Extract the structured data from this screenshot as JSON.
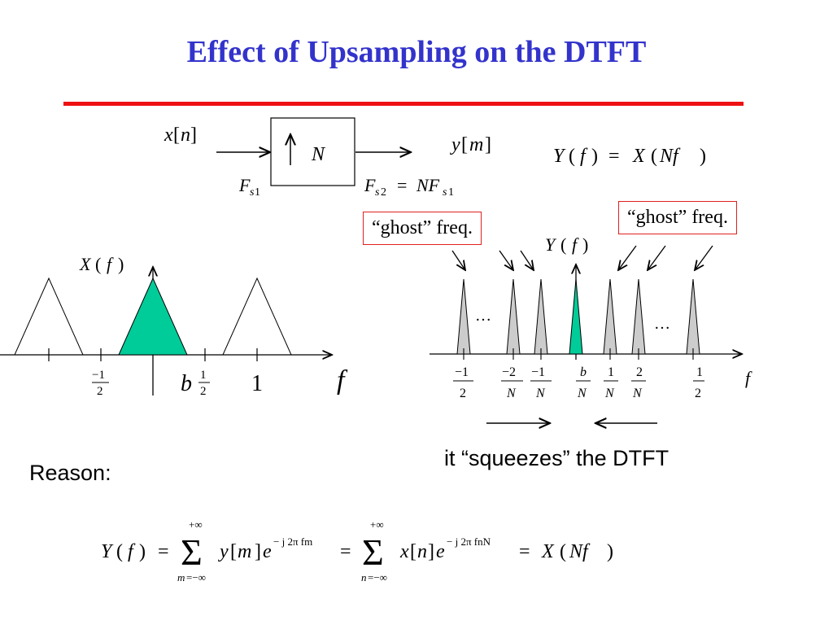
{
  "title": "Effect of Upsampling on the DTFT",
  "colors": {
    "title": "#3333cc",
    "rule": "#ee1111",
    "fill_main": "#00cc99",
    "fill_ghost": "#cccccc",
    "box_border": "#e02020"
  },
  "block_diagram": {
    "input": "x[n]",
    "output": "y[m]",
    "factor": "N",
    "fs_in": "Fs1",
    "fs_out": "Fs2 = NFs1",
    "relation": "Y( f ) = X(Nf )"
  },
  "left_plot": {
    "ylabel": "X( f )",
    "xlabel": "f",
    "ticks": [
      "−1/2",
      "b",
      "1/2",
      "1"
    ]
  },
  "right_plot": {
    "ylabel": "Y( f )",
    "xlabel": "f",
    "ticks": [
      "−1/2",
      "−2/N",
      "−1/N",
      "b/N",
      "1/N",
      "2/N",
      "1/2"
    ],
    "ellipsis": "…",
    "ghost_left": "“ghost” freq.",
    "ghost_right": "“ghost” freq."
  },
  "caption": "it “squeezes” the DTFT",
  "reason_label": "Reason:",
  "equation": "Y( f ) = Σ y[m] e^(−j2πfm) = Σ x[n] e^(−j2πfnN) = X(Nf )"
}
